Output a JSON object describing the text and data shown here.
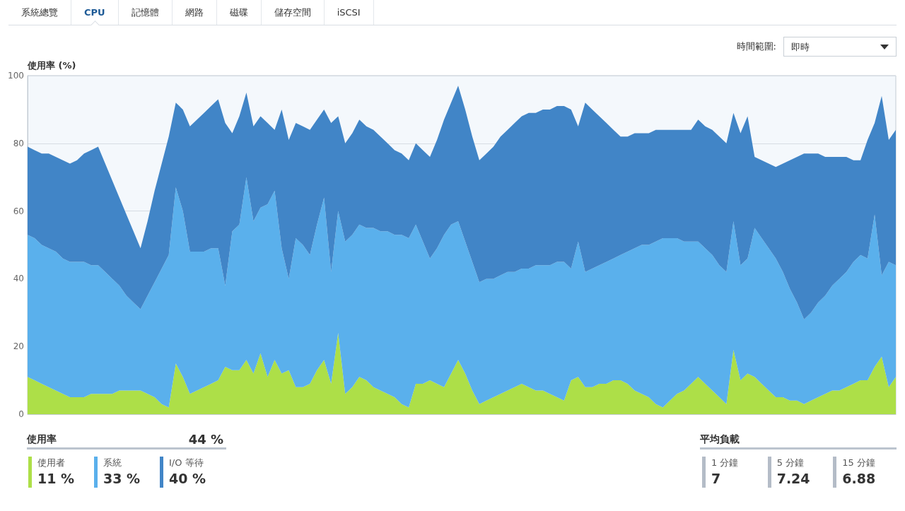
{
  "chart_data": [
    {
      "type": "other",
      "categories": [
        "系統總覽",
        "CPU",
        "記憶體",
        "網路",
        "磁碟",
        "儲存空間",
        "iSCSI"
      ],
      "annotations": [
        "時間範圍:",
        "即時"
      ]
    },
    {
      "type": "area",
      "ylabel": "使用率 (%)",
      "legend_title": "使用率",
      "annotations": [
        "44 %",
        "11 %",
        "33 %",
        "40 %"
      ],
      "stacked": true,
      "ylim": [
        0,
        100
      ],
      "yticks": [
        0,
        20,
        40,
        60,
        80,
        100
      ],
      "grid": "y",
      "legend": "bottom left",
      "tick_labels": "y",
      "categories": [
        null,
        null,
        null,
        null,
        null,
        null,
        null,
        null,
        null,
        null,
        null,
        null,
        null,
        null,
        null,
        null,
        null,
        null,
        null,
        null,
        null,
        null,
        null,
        null,
        null,
        null,
        null,
        null,
        null,
        null,
        null,
        null,
        null,
        null,
        null,
        null,
        null,
        null,
        null,
        null,
        null,
        null,
        null,
        null,
        null,
        null,
        null,
        null,
        null,
        null,
        null,
        null,
        null,
        null,
        null,
        null,
        null,
        null,
        null,
        null,
        null,
        null,
        null,
        null,
        null,
        null,
        null,
        null,
        null,
        null,
        null,
        null,
        null,
        null,
        null,
        null,
        null,
        null,
        null,
        null,
        null,
        null,
        null,
        null,
        null,
        null,
        null,
        null,
        null,
        null,
        null,
        null,
        null,
        null,
        null,
        null,
        null,
        null,
        null,
        null,
        null,
        null,
        null,
        null,
        null,
        null,
        null,
        null,
        null,
        null,
        null,
        null,
        null,
        null,
        null,
        null,
        null,
        null,
        null,
        null,
        null,
        null,
        null,
        null
      ],
      "series": [
        {
          "name": "使用者",
          "color": "#addf48",
          "values": [
            11,
            10,
            9,
            8,
            7,
            6,
            5,
            5,
            5,
            6,
            6,
            6,
            6,
            7,
            7,
            7,
            7,
            6,
            5,
            3,
            2,
            15,
            11,
            6,
            7,
            8,
            9,
            10,
            14,
            13,
            13,
            16,
            12,
            18,
            11,
            16,
            12,
            13,
            8,
            8,
            9,
            13,
            16,
            9,
            24,
            6,
            8,
            11,
            10,
            8,
            7,
            6,
            5,
            3,
            2,
            9,
            9,
            10,
            9,
            8,
            12,
            16,
            12,
            7,
            3,
            4,
            5,
            6,
            7,
            8,
            9,
            8,
            7,
            7,
            6,
            5,
            4,
            10,
            11,
            8,
            8,
            9,
            9,
            10,
            10,
            9,
            7,
            6,
            5,
            3,
            2,
            4,
            6,
            7,
            9,
            11,
            9,
            7,
            5,
            3,
            19,
            10,
            12,
            11,
            9,
            7,
            5,
            5,
            4,
            4,
            3,
            4,
            5,
            6,
            7,
            7,
            8,
            9,
            10,
            10,
            14,
            17,
            8,
            11
          ]
        },
        {
          "name": "系統",
          "color": "#5ab0ec",
          "values": [
            42,
            42,
            41,
            41,
            41,
            40,
            40,
            40,
            40,
            38,
            38,
            36,
            34,
            31,
            28,
            26,
            24,
            29,
            34,
            40,
            45,
            52,
            49,
            42,
            41,
            40,
            40,
            39,
            24,
            41,
            43,
            54,
            45,
            43,
            51,
            50,
            37,
            27,
            44,
            42,
            38,
            43,
            48,
            33,
            36,
            45,
            45,
            45,
            45,
            47,
            47,
            48,
            48,
            50,
            50,
            47,
            42,
            36,
            40,
            45,
            44,
            41,
            39,
            38,
            36,
            36,
            35,
            35,
            35,
            34,
            34,
            35,
            37,
            37,
            38,
            40,
            41,
            33,
            40,
            34,
            35,
            35,
            36,
            36,
            37,
            39,
            42,
            44,
            45,
            48,
            50,
            48,
            46,
            44,
            42,
            40,
            40,
            40,
            39,
            39,
            38,
            34,
            34,
            44,
            43,
            42,
            41,
            37,
            33,
            29,
            25,
            26,
            28,
            29,
            31,
            33,
            34,
            36,
            37,
            36,
            45,
            24,
            37,
            33
          ]
        },
        {
          "name": "I/O 等待",
          "color": "#4185c7",
          "values": [
            26,
            26,
            27,
            28,
            28,
            29,
            29,
            30,
            32,
            34,
            35,
            32,
            29,
            26,
            24,
            21,
            18,
            22,
            27,
            31,
            35,
            25,
            30,
            37,
            39,
            41,
            42,
            44,
            48,
            29,
            32,
            25,
            28,
            27,
            24,
            18,
            41,
            41,
            34,
            35,
            37,
            31,
            26,
            44,
            28,
            29,
            30,
            31,
            30,
            29,
            28,
            26,
            25,
            24,
            23,
            24,
            27,
            30,
            32,
            34,
            36,
            40,
            39,
            37,
            36,
            37,
            39,
            41,
            42,
            44,
            45,
            46,
            45,
            46,
            46,
            46,
            46,
            47,
            34,
            50,
            47,
            44,
            41,
            38,
            35,
            34,
            34,
            33,
            33,
            33,
            32,
            32,
            32,
            33,
            33,
            36,
            36,
            37,
            38,
            38,
            32,
            39,
            42,
            21,
            23,
            25,
            27,
            32,
            38,
            43,
            49,
            47,
            44,
            41,
            38,
            36,
            34,
            30,
            28,
            35,
            27,
            53,
            36,
            40
          ]
        }
      ]
    },
    {
      "type": "other",
      "title": "平均負載",
      "categories": [
        "1 分鐘",
        "5 分鐘",
        "15 分鐘"
      ],
      "values": [
        7,
        7.24,
        6.88
      ],
      "colors": [
        "#b4bcc7",
        "#b4bcc7",
        "#b4bcc7"
      ],
      "data_labels": true
    }
  ]
}
